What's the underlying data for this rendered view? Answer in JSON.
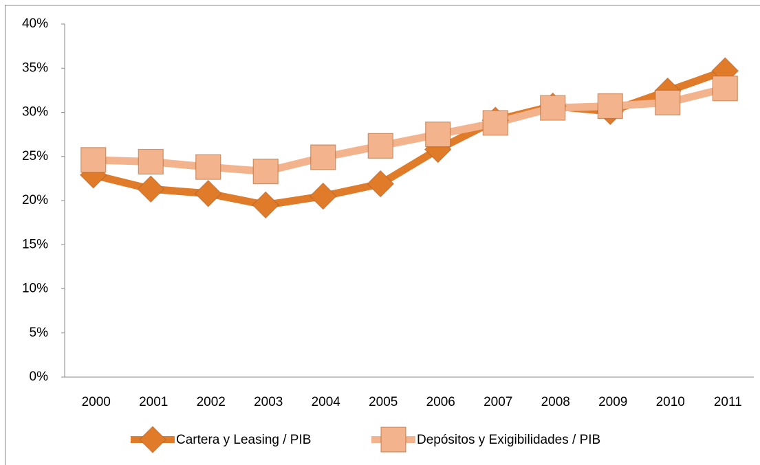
{
  "chart_data": {
    "type": "line",
    "categories": [
      "2000",
      "2001",
      "2002",
      "2003",
      "2004",
      "2005",
      "2006",
      "2007",
      "2008",
      "2009",
      "2010",
      "2011"
    ],
    "series": [
      {
        "name": "Cartera y Leasing / PIB",
        "color": "#e07b2a",
        "marker": "diamond",
        "values": [
          22.9,
          21.3,
          20.8,
          19.5,
          20.5,
          21.9,
          25.8,
          29.1,
          30.7,
          30.1,
          32.4,
          34.7
        ]
      },
      {
        "name": "Depósitos y Exigibilidades / PIB",
        "color": "#f3b38c",
        "marker": "square",
        "values": [
          24.6,
          24.4,
          23.8,
          23.3,
          24.9,
          26.2,
          27.5,
          28.8,
          30.5,
          30.7,
          31.1,
          32.7
        ]
      }
    ],
    "ylim": [
      0,
      40
    ],
    "yticks": [
      {
        "value": 0,
        "label": "0%"
      },
      {
        "value": 5,
        "label": "5%"
      },
      {
        "value": 10,
        "label": "10%"
      },
      {
        "value": 15,
        "label": "15%"
      },
      {
        "value": 20,
        "label": "20%"
      },
      {
        "value": 25,
        "label": "25%"
      },
      {
        "value": 30,
        "label": "30%"
      },
      {
        "value": 35,
        "label": "35%"
      },
      {
        "value": 40,
        "label": "40%"
      }
    ],
    "grid": false,
    "legend": "bottom"
  }
}
